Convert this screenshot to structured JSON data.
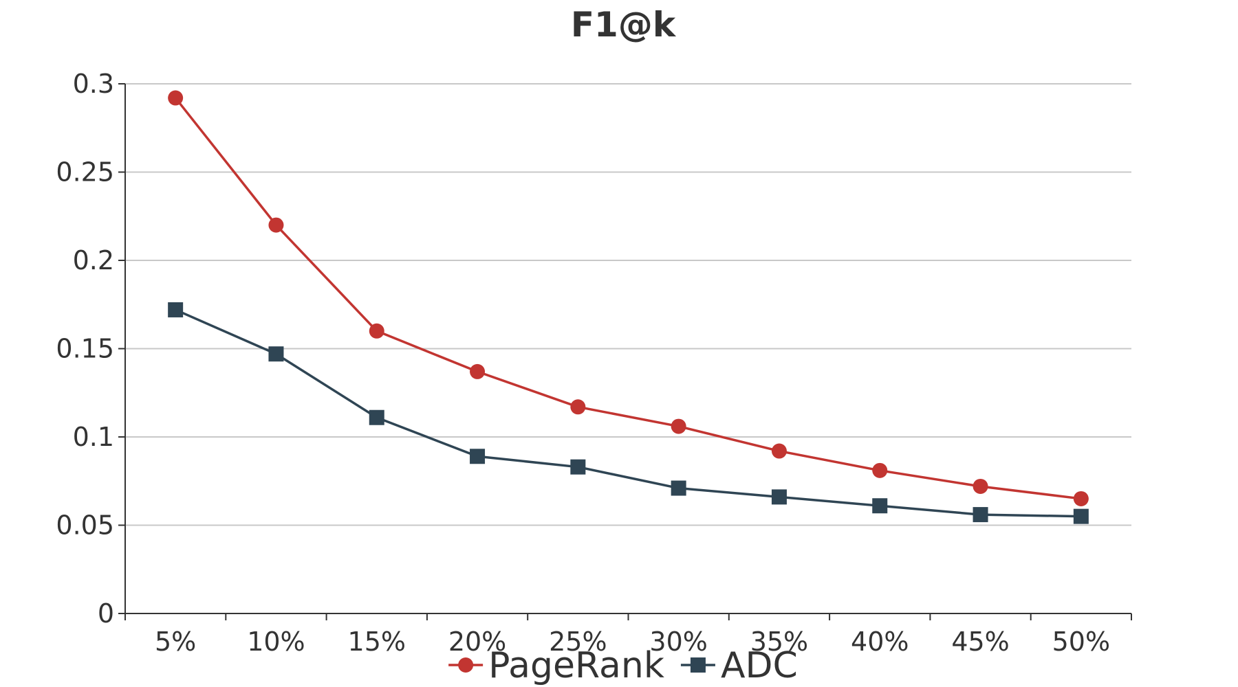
{
  "chart_data": {
    "type": "line",
    "title": "F1@k",
    "xlabel": "",
    "ylabel": "",
    "categories": [
      "5%",
      "10%",
      "15%",
      "20%",
      "25%",
      "30%",
      "35%",
      "40%",
      "45%",
      "50%"
    ],
    "y_ticks": [
      "0",
      "0.05",
      "0.1",
      "0.15",
      "0.2",
      "0.25",
      "0.3"
    ],
    "ylim": [
      0,
      0.3
    ],
    "grid": "horizontal",
    "legend_position": "bottom",
    "series": [
      {
        "name": "PageRank",
        "marker": "circle",
        "color": "#c23531",
        "values": [
          0.292,
          0.22,
          0.16,
          0.137,
          0.117,
          0.106,
          0.092,
          0.081,
          0.072,
          0.065
        ]
      },
      {
        "name": "ADC",
        "marker": "square",
        "color": "#2f4554",
        "values": [
          0.172,
          0.147,
          0.111,
          0.089,
          0.083,
          0.071,
          0.066,
          0.061,
          0.056,
          0.055
        ]
      }
    ]
  }
}
